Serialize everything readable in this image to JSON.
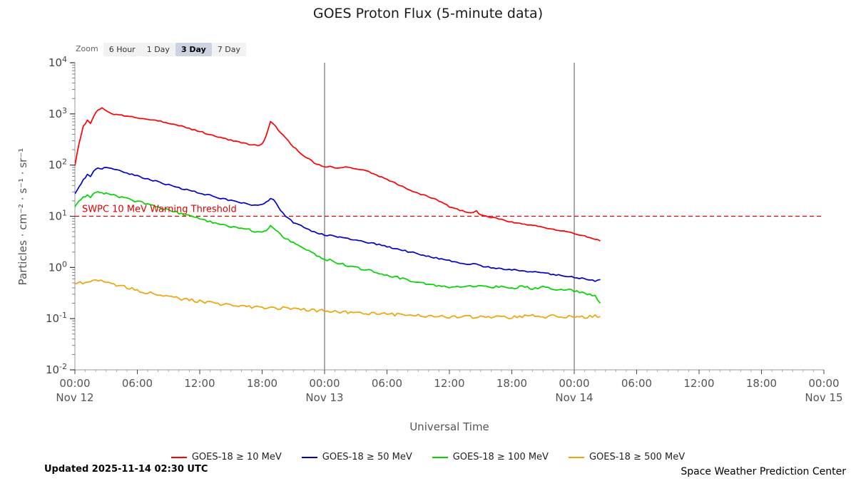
{
  "title": "GOES Proton Flux (5-minute data)",
  "zoom": {
    "label": "Zoom",
    "buttons": [
      {
        "label": "6 Hour",
        "selected": false
      },
      {
        "label": "1 Day",
        "selected": false
      },
      {
        "label": "3 Day",
        "selected": true
      },
      {
        "label": "7 Day",
        "selected": false
      }
    ]
  },
  "footer": {
    "updated": "Updated 2025-11-14 02:30 UTC",
    "credit": "Space Weather Prediction Center"
  },
  "legend": [
    {
      "label": "GOES-18 ≥ 10 MeV",
      "color": "#ff0000"
    },
    {
      "label": "GOES-18 ≥ 50 MeV",
      "color": "#0000cc"
    },
    {
      "label": "GOES-18 ≥ 100 MeV",
      "color": "#00d500"
    },
    {
      "label": "GOES-18 ≥ 500 MeV",
      "color": "#f0a30a"
    }
  ],
  "chart_data": {
    "type": "line",
    "title": "GOES Proton Flux (5-minute data)",
    "xlabel": "Universal Time",
    "ylabel": "Particles · cm⁻² · s⁻¹ · sr⁻¹",
    "x_axis": {
      "unit": "hours since 2025-11-12 00:00 UTC",
      "range_hours": [
        0,
        72
      ],
      "major_tick_hours": 6,
      "tick_labels": [
        "00:00",
        "06:00",
        "12:00",
        "18:00",
        "00:00",
        "06:00",
        "12:00",
        "18:00",
        "00:00",
        "06:00",
        "12:00",
        "18:00",
        "00:00"
      ],
      "day_labels": {
        "0": "Nov 12",
        "24": "Nov 13",
        "48": "Nov 14",
        "72": "Nov 15"
      },
      "day_gridlines_hours": [
        24,
        48
      ]
    },
    "y_axis": {
      "scale": "log",
      "exponent_range": [
        -2,
        4
      ],
      "tick_exponents": [
        4,
        3,
        2,
        1,
        0,
        -1,
        -2
      ]
    },
    "threshold": {
      "label": "SWPC 10 MeV Warning Threshold",
      "value": 10,
      "color": "#e00000",
      "style": "dashed"
    },
    "series": [
      {
        "name": "GOES-18 ≥ 10 MeV",
        "color": "#ff0000",
        "jitter": 0.012,
        "points": [
          [
            0,
            100
          ],
          [
            0.4,
            260
          ],
          [
            0.8,
            560
          ],
          [
            1.2,
            740
          ],
          [
            1.5,
            640
          ],
          [
            1.8,
            900
          ],
          [
            2.2,
            1200
          ],
          [
            2.6,
            1300
          ],
          [
            3,
            1140
          ],
          [
            3.5,
            1010
          ],
          [
            4,
            960
          ],
          [
            5,
            905
          ],
          [
            6,
            830
          ],
          [
            7,
            785
          ],
          [
            8,
            735
          ],
          [
            9,
            660
          ],
          [
            10,
            600
          ],
          [
            11,
            520
          ],
          [
            12,
            455
          ],
          [
            13,
            395
          ],
          [
            14,
            345
          ],
          [
            15,
            305
          ],
          [
            16,
            272
          ],
          [
            17,
            248
          ],
          [
            17.6,
            240
          ],
          [
            18,
            258
          ],
          [
            18.4,
            380
          ],
          [
            18.8,
            700
          ],
          [
            19.1,
            640
          ],
          [
            19.5,
            490
          ],
          [
            20,
            385
          ],
          [
            20.5,
            300
          ],
          [
            21,
            228
          ],
          [
            22,
            152
          ],
          [
            23,
            112
          ],
          [
            24,
            90
          ],
          [
            24.5,
            95
          ],
          [
            25,
            88
          ],
          [
            26,
            92
          ],
          [
            27,
            86
          ],
          [
            28,
            78
          ],
          [
            29,
            64
          ],
          [
            30,
            52
          ],
          [
            31,
            42
          ],
          [
            32,
            34
          ],
          [
            33,
            28
          ],
          [
            34,
            24
          ],
          [
            35,
            20
          ],
          [
            36,
            15.5
          ],
          [
            37,
            13.2
          ],
          [
            38,
            11.6
          ],
          [
            38.6,
            12.6
          ],
          [
            39,
            10.6
          ],
          [
            40,
            9.6
          ],
          [
            41,
            8.6
          ],
          [
            42,
            7.7
          ],
          [
            43,
            7.1
          ],
          [
            44,
            6.6
          ],
          [
            45,
            6.1
          ],
          [
            46,
            5.6
          ],
          [
            47,
            5.1
          ],
          [
            48,
            4.6
          ],
          [
            49,
            4.1
          ],
          [
            50,
            3.6
          ],
          [
            50.5,
            3.3
          ]
        ]
      },
      {
        "name": "GOES-18 ≥ 50 MeV",
        "color": "#0000cc",
        "jitter": 0.014,
        "points": [
          [
            0,
            27
          ],
          [
            0.4,
            38
          ],
          [
            0.8,
            52
          ],
          [
            1.2,
            64
          ],
          [
            1.5,
            58
          ],
          [
            1.8,
            75
          ],
          [
            2.2,
            88
          ],
          [
            2.6,
            84
          ],
          [
            3,
            89
          ],
          [
            3.5,
            87
          ],
          [
            4,
            80
          ],
          [
            5,
            70
          ],
          [
            6,
            61
          ],
          [
            7,
            53
          ],
          [
            8,
            47
          ],
          [
            9,
            41
          ],
          [
            10,
            36
          ],
          [
            11,
            32
          ],
          [
            12,
            28.5
          ],
          [
            13,
            25.5
          ],
          [
            14,
            22.5
          ],
          [
            15,
            20.3
          ],
          [
            16,
            18.4
          ],
          [
            17,
            16.8
          ],
          [
            17.6,
            16.2
          ],
          [
            18,
            16.6
          ],
          [
            18.4,
            18.5
          ],
          [
            18.8,
            23
          ],
          [
            19.1,
            21
          ],
          [
            19.5,
            15.5
          ],
          [
            20,
            11.5
          ],
          [
            20.5,
            9.2
          ],
          [
            21,
            7.6
          ],
          [
            22,
            6.1
          ],
          [
            23,
            4.9
          ],
          [
            24,
            4.3
          ],
          [
            24.5,
            4.25
          ],
          [
            25,
            4.05
          ],
          [
            26,
            3.75
          ],
          [
            27,
            3.45
          ],
          [
            28,
            3.15
          ],
          [
            29,
            2.85
          ],
          [
            30,
            2.55
          ],
          [
            31,
            2.3
          ],
          [
            32,
            2.05
          ],
          [
            33,
            1.85
          ],
          [
            34,
            1.65
          ],
          [
            35,
            1.5
          ],
          [
            36,
            1.35
          ],
          [
            37,
            1.24
          ],
          [
            38,
            1.16
          ],
          [
            38.6,
            1.18
          ],
          [
            39,
            1.07
          ],
          [
            40,
            1.0
          ],
          [
            41,
            0.95
          ],
          [
            42,
            0.9
          ],
          [
            43,
            0.86
          ],
          [
            44,
            0.82
          ],
          [
            45,
            0.78
          ],
          [
            46,
            0.73
          ],
          [
            47,
            0.68
          ],
          [
            48,
            0.64
          ],
          [
            49,
            0.6
          ],
          [
            50,
            0.55
          ],
          [
            50.5,
            0.58
          ]
        ]
      },
      {
        "name": "GOES-18 ≥ 100 MeV",
        "color": "#00d500",
        "jitter": 0.022,
        "points": [
          [
            0,
            16
          ],
          [
            0.4,
            19
          ],
          [
            0.8,
            23
          ],
          [
            1.2,
            25
          ],
          [
            1.5,
            23
          ],
          [
            1.8,
            27
          ],
          [
            2.2,
            30
          ],
          [
            2.6,
            29
          ],
          [
            3,
            28
          ],
          [
            3.5,
            26.5
          ],
          [
            4,
            25
          ],
          [
            5,
            22
          ],
          [
            6,
            19.5
          ],
          [
            7,
            17.2
          ],
          [
            8,
            15.2
          ],
          [
            9,
            13.2
          ],
          [
            10,
            11.6
          ],
          [
            11,
            10.1
          ],
          [
            12,
            8.9
          ],
          [
            13,
            7.9
          ],
          [
            14,
            7.1
          ],
          [
            15,
            6.4
          ],
          [
            16,
            5.8
          ],
          [
            17,
            5.3
          ],
          [
            17.6,
            5.0
          ],
          [
            18,
            4.9
          ],
          [
            18.4,
            5.3
          ],
          [
            18.8,
            6.4
          ],
          [
            19.1,
            6.0
          ],
          [
            19.5,
            4.9
          ],
          [
            20,
            3.9
          ],
          [
            20.5,
            3.4
          ],
          [
            21,
            3.0
          ],
          [
            22,
            2.4
          ],
          [
            23,
            1.85
          ],
          [
            24,
            1.45
          ],
          [
            24.5,
            1.38
          ],
          [
            25,
            1.28
          ],
          [
            26,
            1.12
          ],
          [
            27,
            1.0
          ],
          [
            28,
            0.9
          ],
          [
            29,
            0.8
          ],
          [
            30,
            0.72
          ],
          [
            31,
            0.64
          ],
          [
            32,
            0.57
          ],
          [
            33,
            0.51
          ],
          [
            34,
            0.47
          ],
          [
            35,
            0.44
          ],
          [
            36,
            0.41
          ],
          [
            37,
            0.43
          ],
          [
            38,
            0.45
          ],
          [
            38.6,
            0.42
          ],
          [
            39,
            0.44
          ],
          [
            40,
            0.41
          ],
          [
            41,
            0.43
          ],
          [
            42,
            0.4
          ],
          [
            43,
            0.42
          ],
          [
            44,
            0.39
          ],
          [
            45,
            0.41
          ],
          [
            46,
            0.38
          ],
          [
            47,
            0.37
          ],
          [
            48,
            0.35
          ],
          [
            49,
            0.32
          ],
          [
            50,
            0.28
          ],
          [
            50.5,
            0.2
          ]
        ]
      },
      {
        "name": "GOES-18 ≥ 500 MeV",
        "color": "#f0a30a",
        "jitter": 0.032,
        "points": [
          [
            0,
            0.47
          ],
          [
            0.5,
            0.5
          ],
          [
            1,
            0.52
          ],
          [
            1.5,
            0.54
          ],
          [
            2,
            0.55
          ],
          [
            2.5,
            0.53
          ],
          [
            3,
            0.51
          ],
          [
            4,
            0.46
          ],
          [
            5,
            0.41
          ],
          [
            6,
            0.36
          ],
          [
            7,
            0.32
          ],
          [
            8,
            0.29
          ],
          [
            9,
            0.27
          ],
          [
            10,
            0.25
          ],
          [
            11,
            0.23
          ],
          [
            12,
            0.215
          ],
          [
            13,
            0.205
          ],
          [
            14,
            0.195
          ],
          [
            15,
            0.185
          ],
          [
            16,
            0.175
          ],
          [
            17,
            0.17
          ],
          [
            18,
            0.165
          ],
          [
            19,
            0.165
          ],
          [
            20,
            0.16
          ],
          [
            21,
            0.155
          ],
          [
            22,
            0.15
          ],
          [
            23,
            0.145
          ],
          [
            24,
            0.14
          ],
          [
            25,
            0.135
          ],
          [
            26,
            0.134
          ],
          [
            27,
            0.13
          ],
          [
            28,
            0.128
          ],
          [
            29,
            0.125
          ],
          [
            30,
            0.122
          ],
          [
            31,
            0.12
          ],
          [
            32,
            0.118
          ],
          [
            33,
            0.115
          ],
          [
            34,
            0.113
          ],
          [
            35,
            0.112
          ],
          [
            36,
            0.108
          ],
          [
            37,
            0.113
          ],
          [
            38,
            0.107
          ],
          [
            39,
            0.112
          ],
          [
            40,
            0.106
          ],
          [
            41,
            0.111
          ],
          [
            42,
            0.105
          ],
          [
            43,
            0.11
          ],
          [
            44,
            0.112
          ],
          [
            45,
            0.106
          ],
          [
            46,
            0.111
          ],
          [
            47,
            0.105
          ],
          [
            48,
            0.11
          ],
          [
            49,
            0.106
          ],
          [
            50,
            0.112
          ],
          [
            50.5,
            0.11
          ]
        ]
      }
    ]
  }
}
